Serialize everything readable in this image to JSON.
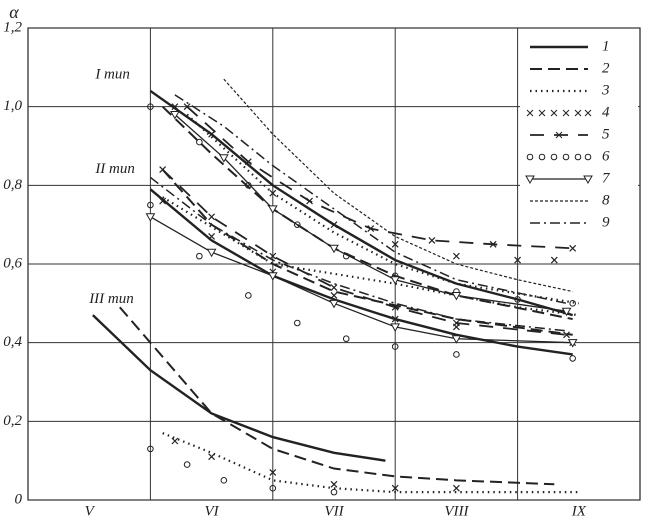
{
  "chart_data": {
    "type": "line",
    "y_label": "α",
    "xlim": [
      0,
      5
    ],
    "xticks": [
      {
        "value": 0.5,
        "label": "V"
      },
      {
        "value": 1.5,
        "label": "VI"
      },
      {
        "value": 2.5,
        "label": "VII"
      },
      {
        "value": 3.5,
        "label": "VIII"
      },
      {
        "value": 4.5,
        "label": "IX"
      }
    ],
    "ylim": [
      0,
      1.2
    ],
    "yticks": [
      {
        "value": 0,
        "label": "0"
      },
      {
        "value": 0.2,
        "label": "0,2"
      },
      {
        "value": 0.4,
        "label": "0,4"
      },
      {
        "value": 0.6,
        "label": "0,6"
      },
      {
        "value": 0.8,
        "label": "0,8"
      },
      {
        "value": 1.0,
        "label": "1,0"
      },
      {
        "value": 1.2,
        "label": "1,2"
      }
    ],
    "grid": true,
    "legend": "upper right",
    "annotations": [
      {
        "text": "I тип",
        "x": 0.55,
        "y": 1.08
      },
      {
        "text": "II тип",
        "x": 0.55,
        "y": 0.84
      },
      {
        "text": "III тип",
        "x": 0.5,
        "y": 0.51
      }
    ],
    "series": [
      {
        "name": "1",
        "style": "solid",
        "color": "#222",
        "curves": [
          {
            "x": [
              1.0,
              1.5,
              2.0,
              2.5,
              3.0,
              3.5,
              4.0,
              4.45
            ],
            "values": [
              1.04,
              0.93,
              0.8,
              0.7,
              0.61,
              0.55,
              0.51,
              0.47
            ]
          },
          {
            "x": [
              1.0,
              1.5,
              2.0,
              2.5,
              3.0,
              3.5,
              4.0,
              4.45
            ],
            "values": [
              0.79,
              0.66,
              0.57,
              0.51,
              0.46,
              0.42,
              0.39,
              0.37
            ]
          },
          {
            "x": [
              0.53,
              1.0,
              1.5,
              2.0,
              2.5,
              2.92
            ],
            "values": [
              0.47,
              0.33,
              0.22,
              0.16,
              0.12,
              0.1
            ]
          }
        ]
      },
      {
        "name": "2",
        "style": "dashed",
        "color": "#222",
        "curves": [
          {
            "x": [
              1.1,
              1.5,
              2.0,
              2.5,
              3.0,
              3.5,
              4.45
            ],
            "values": [
              1.0,
              0.88,
              0.74,
              0.64,
              0.57,
              0.52,
              0.46
            ]
          },
          {
            "x": [
              1.1,
              1.5,
              2.0,
              2.5,
              3.5,
              4.45
            ],
            "values": [
              0.84,
              0.7,
              0.6,
              0.53,
              0.46,
              0.42
            ]
          },
          {
            "x": [
              0.75,
              1.0,
              1.5,
              2.0,
              2.5,
              3.0,
              3.5,
              4.3
            ],
            "values": [
              0.49,
              0.4,
              0.22,
              0.13,
              0.08,
              0.06,
              0.05,
              0.04
            ]
          }
        ]
      },
      {
        "name": "3",
        "style": "dotted",
        "color": "#222",
        "curves": [
          {
            "x": [
              1.3,
              2.0,
              2.5,
              3.0,
              3.5,
              4.5
            ],
            "values": [
              0.98,
              0.78,
              0.68,
              0.6,
              0.55,
              0.5
            ]
          },
          {
            "x": [
              1.1,
              2.0,
              3.0,
              4.0,
              4.5
            ],
            "values": [
              0.77,
              0.6,
              0.55,
              0.49,
              0.47
            ]
          },
          {
            "x": [
              1.1,
              1.5,
              2.0,
              2.5,
              3.0,
              4.5
            ],
            "values": [
              0.17,
              0.12,
              0.05,
              0.03,
              0.02,
              0.02
            ]
          }
        ]
      },
      {
        "name": "4",
        "style": "cross",
        "color": "#222",
        "curves": [
          {
            "x": [
              1.2,
              1.5,
              2.0,
              2.5,
              3.0,
              3.5,
              4.0,
              4.3
            ],
            "values": [
              1.0,
              0.93,
              0.78,
              0.7,
              0.65,
              0.62,
              0.61,
              0.61
            ]
          },
          {
            "x": [
              1.1,
              1.5,
              2.0,
              2.5,
              3.0,
              3.5,
              4.45
            ],
            "values": [
              0.76,
              0.67,
              0.58,
              0.52,
              0.46,
              0.44,
              0.4
            ]
          },
          {
            "x": [
              1.2,
              1.5,
              2.0,
              2.5,
              3.0,
              3.5
            ],
            "values": [
              0.15,
              0.11,
              0.07,
              0.04,
              0.03,
              0.03
            ]
          }
        ]
      },
      {
        "name": "5",
        "style": "dash-cross",
        "color": "#222",
        "curves": [
          {
            "x": [
              1.3,
              1.8,
              2.3,
              2.8,
              3.3,
              3.8,
              4.45
            ],
            "values": [
              1.0,
              0.86,
              0.76,
              0.69,
              0.66,
              0.65,
              0.64
            ]
          },
          {
            "x": [
              1.1,
              1.5,
              2.0,
              2.5,
              3.0,
              3.5,
              4.4
            ],
            "values": [
              0.84,
              0.72,
              0.62,
              0.54,
              0.49,
              0.45,
              0.42
            ]
          }
        ]
      },
      {
        "name": "6",
        "style": "circle",
        "color": "#222",
        "curves": [
          {
            "x": [
              1.0,
              1.4,
              1.8,
              2.2,
              2.6,
              3.0,
              3.5,
              4.0,
              4.45
            ],
            "values": [
              1.0,
              0.91,
              0.8,
              0.7,
              0.62,
              0.57,
              0.53,
              0.51,
              0.5
            ]
          },
          {
            "x": [
              1.0,
              1.4,
              1.8,
              2.2,
              2.6,
              3.0,
              3.5,
              4.45
            ],
            "values": [
              0.75,
              0.62,
              0.52,
              0.45,
              0.41,
              0.39,
              0.37,
              0.36
            ]
          },
          {
            "x": [
              1.0,
              1.3,
              1.6,
              2.0,
              2.5
            ],
            "values": [
              0.13,
              0.09,
              0.05,
              0.03,
              0.02
            ]
          }
        ]
      },
      {
        "name": "7",
        "style": "triangle",
        "color": "#222",
        "curves": [
          {
            "x": [
              1.2,
              1.6,
              2.0,
              2.5,
              3.0,
              3.5,
              4.4
            ],
            "values": [
              0.98,
              0.87,
              0.74,
              0.64,
              0.56,
              0.52,
              0.48
            ]
          },
          {
            "x": [
              1.0,
              1.5,
              2.0,
              2.5,
              3.0,
              3.5,
              4.45
            ],
            "values": [
              0.72,
              0.63,
              0.57,
              0.5,
              0.44,
              0.41,
              0.4
            ]
          }
        ]
      },
      {
        "name": "8",
        "style": "wavy",
        "color": "#222",
        "curves": [
          {
            "x": [
              1.6,
              2.0,
              2.5,
              3.0,
              3.5,
              4.0,
              4.45
            ],
            "values": [
              1.07,
              0.93,
              0.78,
              0.67,
              0.6,
              0.56,
              0.53
            ]
          }
        ]
      },
      {
        "name": "9",
        "style": "dash-dot",
        "color": "#222",
        "curves": [
          {
            "x": [
              1.2,
              1.6,
              2.0,
              2.5,
              3.0,
              3.5,
              4.4
            ],
            "values": [
              1.03,
              0.95,
              0.85,
              0.74,
              0.63,
              0.56,
              0.5
            ]
          },
          {
            "x": [
              1.0,
              1.5,
              2.0,
              2.5,
              3.0,
              3.5,
              4.4
            ],
            "values": [
              0.82,
              0.7,
              0.61,
              0.55,
              0.5,
              0.46,
              0.43
            ]
          }
        ]
      }
    ]
  }
}
